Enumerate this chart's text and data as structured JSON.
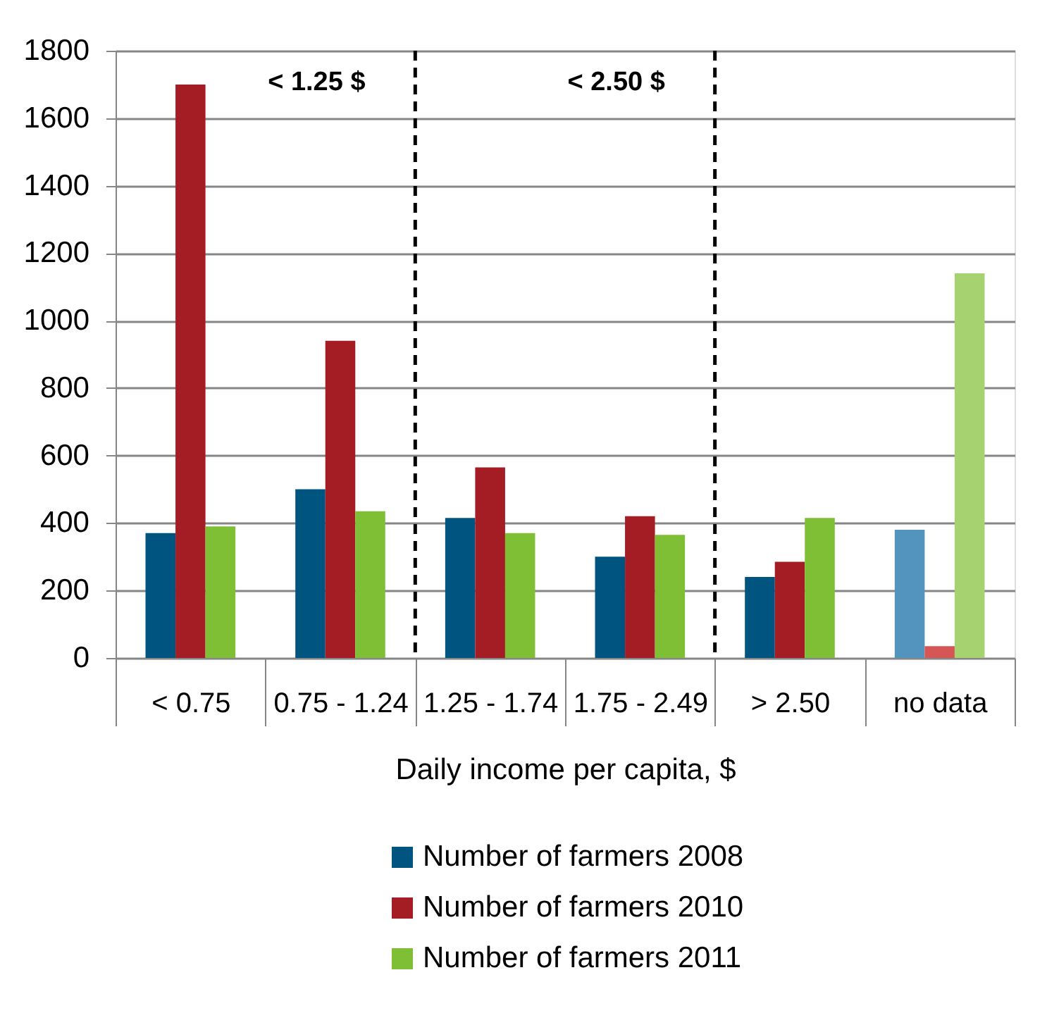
{
  "chart_data": {
    "type": "bar",
    "xlabel": "Daily income per capita, $",
    "categories": [
      "< 0.75",
      "0.75 - 1.24",
      "1.25 - 1.74",
      "1.75 - 2.49",
      "> 2.50",
      "no data"
    ],
    "series": [
      {
        "name": "Number of farmers 2008",
        "color": "#005480",
        "colors": [
          "#005480",
          "#005480",
          "#005480",
          "#005480",
          "#005480",
          "#5294bd"
        ],
        "values": [
          370,
          500,
          415,
          300,
          240,
          380
        ]
      },
      {
        "name": "Number of farmers 2010",
        "color": "#a51d24",
        "colors": [
          "#a51d24",
          "#a51d24",
          "#a51d24",
          "#a51d24",
          "#a51d24",
          "#d65555"
        ],
        "values": [
          1700,
          940,
          565,
          420,
          285,
          35
        ]
      },
      {
        "name": "Number of farmers 2011",
        "color": "#7fbf35",
        "colors": [
          "#7fbf35",
          "#7fbf35",
          "#7fbf35",
          "#7fbf35",
          "#7fbf35",
          "#a6d270"
        ],
        "values": [
          390,
          435,
          370,
          365,
          415,
          1140
        ]
      }
    ],
    "ylim": [
      0,
      1800
    ],
    "yticks": [
      0,
      200,
      400,
      600,
      800,
      1000,
      1200,
      1400,
      1600,
      1800
    ],
    "grid": "y",
    "legend": "bottom",
    "annotations": [
      "< 1.25 $",
      "< 2.50 $"
    ]
  }
}
